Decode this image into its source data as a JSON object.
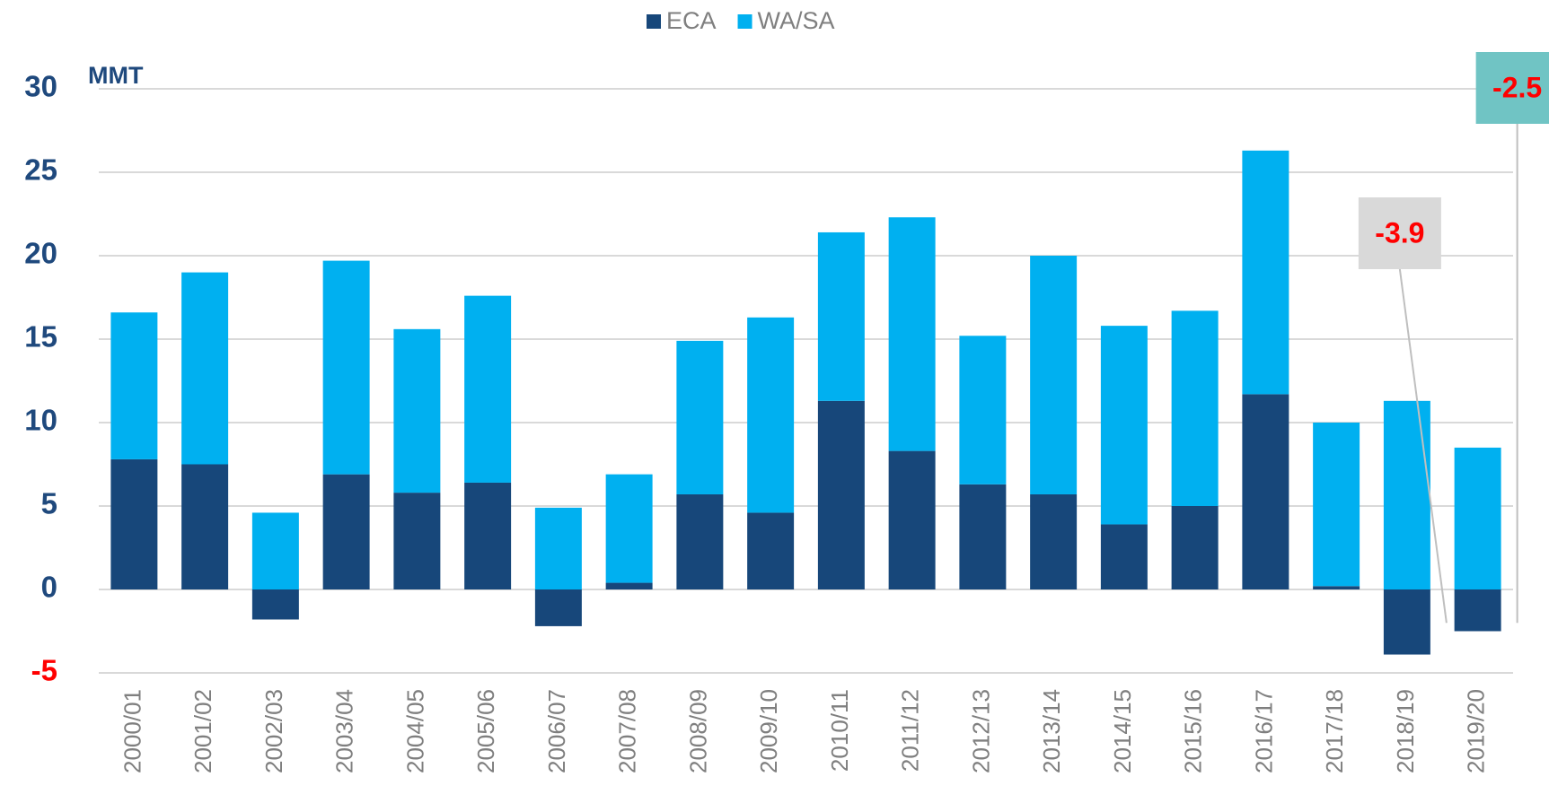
{
  "chart_data": {
    "type": "bar",
    "stacked": true,
    "y_label": "MMT",
    "categories": [
      "2000/01",
      "2001/02",
      "2002/03",
      "2003/04",
      "2004/05",
      "2005/06",
      "2006/07",
      "2007/08",
      "2008/09",
      "2009/10",
      "2010/11",
      "2011/12",
      "2012/13",
      "2013/14",
      "2014/15",
      "2015/16",
      "2016/17",
      "2017/18",
      "2018/19",
      "2019/20"
    ],
    "series": [
      {
        "name": "ECA",
        "color": "#17477a",
        "values": [
          7.8,
          7.5,
          -1.8,
          6.9,
          5.8,
          6.4,
          -2.2,
          0.4,
          5.7,
          4.6,
          11.3,
          8.3,
          6.3,
          5.7,
          3.9,
          5.0,
          11.7,
          0.2,
          -3.9,
          -2.5
        ]
      },
      {
        "name": "WA/SA",
        "color": "#00b0f0",
        "values": [
          8.8,
          11.5,
          4.6,
          12.8,
          9.8,
          11.2,
          4.9,
          6.5,
          9.2,
          11.7,
          10.1,
          14.0,
          8.9,
          14.3,
          11.9,
          11.7,
          14.6,
          9.8,
          11.3,
          8.5
        ]
      }
    ],
    "ylim": [
      -5,
      30
    ],
    "yticks": [
      30,
      25,
      20,
      15,
      10,
      5,
      0,
      -5
    ],
    "grid": true,
    "legend": "top"
  }
}
